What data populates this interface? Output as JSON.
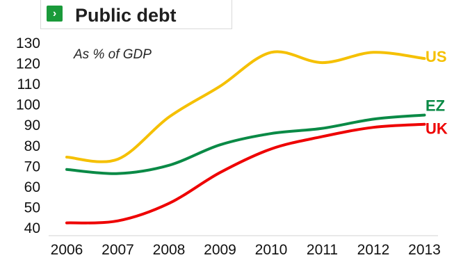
{
  "header": {
    "title": "Public debt",
    "chevron_icon": "chevron-right-icon"
  },
  "chart_data": {
    "type": "line",
    "title": "Public debt",
    "subtitle": "As % of GDP",
    "x": [
      "2006",
      "2007",
      "2008",
      "2009",
      "2010",
      "2011",
      "2012",
      "2013"
    ],
    "ylim": [
      40,
      130
    ],
    "yticks": [
      40,
      50,
      60,
      70,
      80,
      90,
      100,
      110,
      120,
      130
    ],
    "grid": false,
    "series": [
      {
        "name": "US",
        "color": "#f5c000",
        "values": [
          74.5,
          73.5,
          94,
          109,
          125.5,
          120.5,
          125.5,
          122.5
        ]
      },
      {
        "name": "EZ",
        "color": "#0a8a46",
        "values": [
          68.5,
          66.5,
          70.5,
          80.5,
          86,
          88.5,
          93,
          95
        ]
      },
      {
        "name": "UK",
        "color": "#ee0000",
        "values": [
          42.5,
          43.5,
          52,
          67,
          78.5,
          84.5,
          89,
          90.5
        ]
      }
    ]
  }
}
